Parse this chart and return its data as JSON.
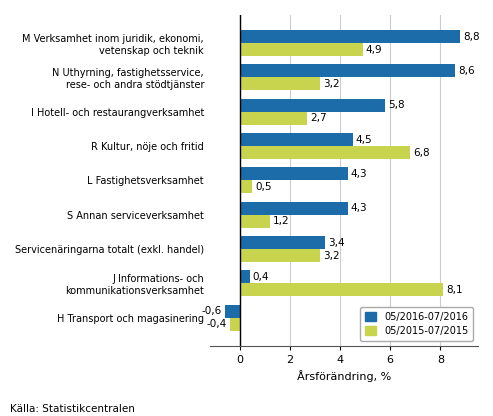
{
  "categories": [
    "M Verksamhet inom juridik, ekonomi,\nvetenskap och teknik",
    "N Uthyrning, fastighetsservice,\nrese- och andra stödtjänster",
    "I Hotell- och restaurangverksamhet",
    "R Kultur, nöje och fritid",
    "L Fastighetsverksamhet",
    "S Annan serviceverksamhet",
    "Servicenäringarna totalt (exkl. handel)",
    "J Informations- och\nkommunikationsverksamhet",
    "H Transport och magasinering"
  ],
  "values_2016": [
    8.8,
    8.6,
    5.8,
    4.5,
    4.3,
    4.3,
    3.4,
    0.4,
    -0.6
  ],
  "values_2015": [
    4.9,
    3.2,
    2.7,
    6.8,
    0.5,
    1.2,
    3.2,
    8.1,
    -0.4
  ],
  "color_2016": "#1b6ca8",
  "color_2015": "#c8d44e",
  "xlabel": "Årsförändring, %",
  "legend_2016": "05/2016-07/2016",
  "legend_2015": "05/2015-07/2015",
  "source": "Källa: Statistikcentralen",
  "xlim": [
    -1.2,
    9.5
  ],
  "bar_height": 0.38,
  "grid_color": "#cccccc",
  "xticks": [
    0,
    2,
    4,
    6,
    8
  ],
  "xtick_labels": [
    "0",
    "2",
    "4",
    "6",
    "8"
  ]
}
